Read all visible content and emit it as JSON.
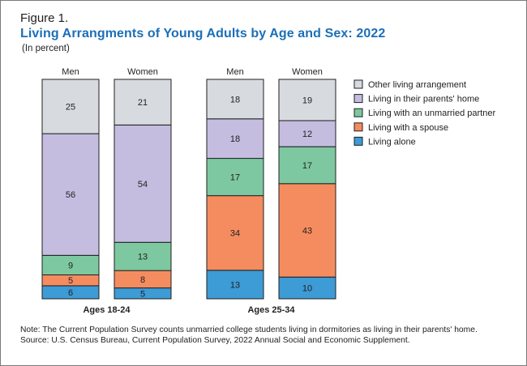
{
  "figure_label": "Figure 1.",
  "chart_data": {
    "type": "bar",
    "stacked": true,
    "percent": true,
    "title": "Living Arrangments of Young Adults by Age and Sex: 2022",
    "subtitle": "(In percent)",
    "groups": [
      {
        "label": "Ages 18-24",
        "categories": [
          "Men",
          "Women"
        ]
      },
      {
        "label": "Ages 25-34",
        "categories": [
          "Men",
          "Women"
        ]
      }
    ],
    "series": [
      {
        "name": "Living alone",
        "color": "#3d9bd6",
        "values": [
          6,
          5,
          13,
          10
        ]
      },
      {
        "name": "Living with a spouse",
        "color": "#f58c5f",
        "values": [
          5,
          8,
          34,
          43
        ]
      },
      {
        "name": "Living with an unmarried partner",
        "color": "#7dc8a0",
        "values": [
          9,
          13,
          17,
          17
        ]
      },
      {
        "name": "Living in their parents' home",
        "color": "#c4bde0",
        "values": [
          56,
          54,
          18,
          12
        ]
      },
      {
        "name": "Other living arrangement",
        "color": "#d7dbdf",
        "values": [
          25,
          21,
          18,
          19
        ]
      }
    ],
    "legend_order": [
      "Other living arrangement",
      "Living in their parents' home",
      "Living with an unmarried partner",
      "Living with a spouse",
      "Living alone"
    ],
    "legend_position": "right",
    "ylim": [
      0,
      100
    ]
  },
  "notes": {
    "note": "Note: The Current Population Survey counts unmarried college students living in dormitories as living in their parents' home.",
    "source": "Source: U.S. Census Bureau, Current Population Survey, 2022 Annual Social and Economic Supplement."
  }
}
